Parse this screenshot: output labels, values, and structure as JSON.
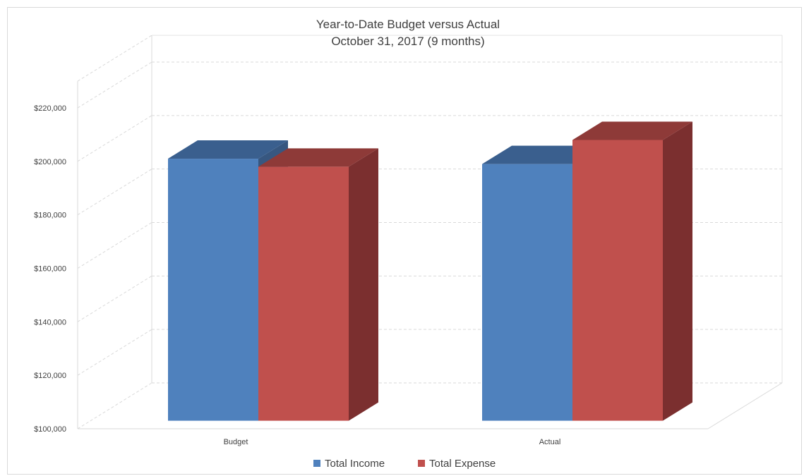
{
  "chart_data": {
    "type": "bar",
    "title": "Year-to-Date Budget versus Actual",
    "subtitle": "October 31, 2017 (9 months)",
    "categories": [
      "Budget",
      "Actual"
    ],
    "series": [
      {
        "name": "Total Income",
        "values": [
          201000,
          199000
        ],
        "color": "#4f81bd",
        "top_color": "#3a5f8e",
        "side_color": "#375780"
      },
      {
        "name": "Total Expense",
        "values": [
          198000,
          208000
        ],
        "color": "#c0504d",
        "top_color": "#8e3a38",
        "side_color": "#7b2f2f"
      }
    ],
    "y_ticks": [
      "$100,000",
      "$120,000",
      "$140,000",
      "$160,000",
      "$180,000",
      "$200,000",
      "$220,000"
    ],
    "y_tick_values": [
      100000,
      120000,
      140000,
      160000,
      180000,
      200000,
      220000
    ],
    "ylim": [
      100000,
      230000
    ],
    "grid": true,
    "legend_position": "bottom",
    "style": "3d-clustered-column"
  }
}
